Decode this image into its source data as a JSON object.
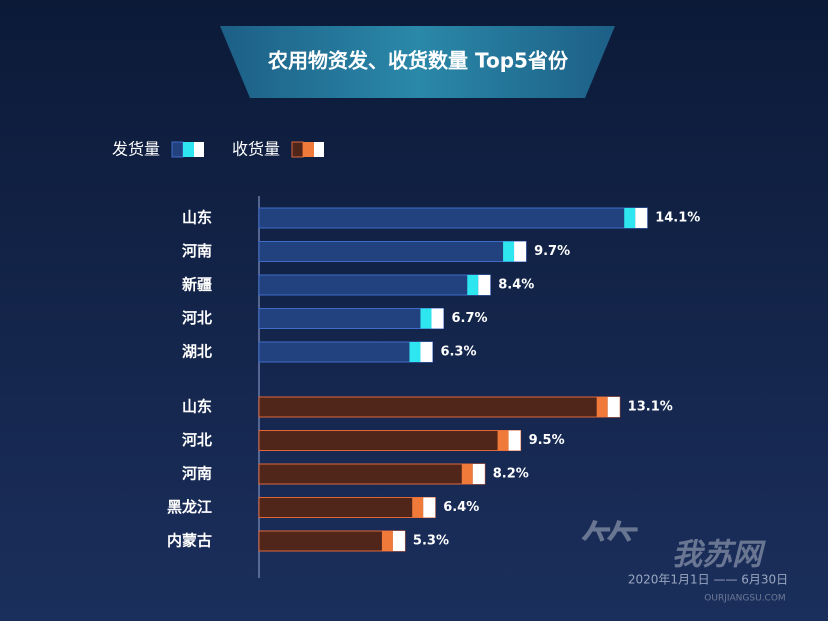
{
  "chart_data": {
    "type": "bar",
    "orientation": "horizontal",
    "title": "农用物资发、收货数量 Top5省份",
    "xlim": [
      0,
      15
    ],
    "legend": "top-left",
    "series": [
      {
        "name": "发货量",
        "color": "#22417f",
        "cap_color": "#2ee6f0",
        "categories": [
          "山东",
          "河南",
          "新疆",
          "河北",
          "湖北"
        ],
        "values": [
          14.1,
          9.7,
          8.4,
          6.7,
          6.3
        ],
        "value_labels": [
          "14.1%",
          "9.7%",
          "8.4%",
          "6.7%",
          "6.3%"
        ]
      },
      {
        "name": "收货量",
        "color": "#50261a",
        "cap_color": "#f07a3a",
        "categories": [
          "山东",
          "河北",
          "河南",
          "黑龙江",
          "内蒙古"
        ],
        "values": [
          13.1,
          9.5,
          8.2,
          6.4,
          5.3
        ],
        "value_labels": [
          "13.1%",
          "9.5%",
          "8.2%",
          "6.4%",
          "5.3%"
        ]
      }
    ],
    "note": "2020年1月1日 —— 6月30日",
    "watermark": "我苏网",
    "watermark_url": "OURJIANGSU.COM"
  }
}
